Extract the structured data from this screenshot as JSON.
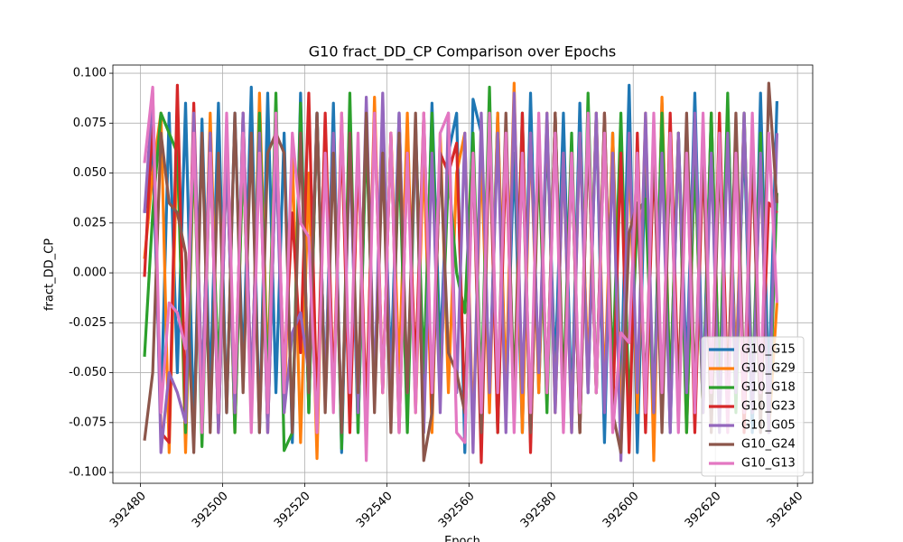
{
  "chart_data": {
    "type": "line",
    "title": "G10 fract_DD_CP Comparison over Epochs",
    "xlabel": "Epoch",
    "ylabel": "fract_DD_CP",
    "x": [
      392481,
      392483,
      392485,
      392487,
      392489,
      392491,
      392493,
      392495,
      392497,
      392499,
      392501,
      392503,
      392505,
      392507,
      392509,
      392511,
      392513,
      392515,
      392517,
      392519,
      392521,
      392523,
      392525,
      392527,
      392529,
      392531,
      392533,
      392535,
      392537,
      392539,
      392541,
      392543,
      392545,
      392547,
      392549,
      392551,
      392553,
      392555,
      392557,
      392559,
      392561,
      392563,
      392565,
      392567,
      392569,
      392571,
      392573,
      392575,
      392577,
      392579,
      392581,
      392583,
      392585,
      392587,
      392589,
      392591,
      392593,
      392595,
      392597,
      392599,
      392601,
      392603,
      392605,
      392607,
      392609,
      392611,
      392613,
      392615,
      392617,
      392619,
      392621,
      392623,
      392625,
      392627,
      392629,
      392631,
      392633,
      392635
    ],
    "xlim": [
      392473.3,
      392643.7
    ],
    "xticks": [
      392480,
      392500,
      392520,
      392540,
      392560,
      392580,
      392600,
      392620,
      392640
    ],
    "ylim": [
      -0.1054,
      0.1041
    ],
    "yticks": [
      {
        "value": 0.1,
        "label": "0.100"
      },
      0.075,
      {
        "value": 0.05,
        "label": "0.050"
      },
      0.025,
      {
        "value": 0,
        "label": "0.000"
      },
      -0.025,
      {
        "value": -0.05,
        "label": "-0.050"
      },
      -0.075,
      {
        "value": -0.1,
        "label": "-0.100"
      }
    ],
    "grid": true,
    "legend": "lower right",
    "series": [
      {
        "name": "G10_G15",
        "color": "#1f77b4",
        "values": [
          0.03,
          0.06,
          -0.07,
          0.08,
          -0.05,
          0.085,
          -0.08,
          0.077,
          -0.06,
          0.085,
          -0.07,
          0.08,
          -0.05,
          0.093,
          -0.08,
          0.09,
          -0.06,
          0.07,
          -0.085,
          0.09,
          -0.07,
          0.08,
          -0.06,
          0.085,
          -0.09,
          0.07,
          -0.08,
          0.075,
          -0.06,
          0.07,
          -0.05,
          0.08,
          -0.07,
          0.075,
          -0.06,
          0.085,
          -0.04,
          0.06,
          0.08,
          -0.09,
          0.087,
          0.07,
          -0.06,
          0.08,
          -0.07,
          0.06,
          -0.08,
          0.09,
          -0.06,
          0.07,
          -0.05,
          0.08,
          -0.07,
          0.085,
          -0.06,
          0.08,
          -0.085,
          0.07,
          -0.06,
          0.094,
          -0.09,
          0.06,
          -0.07,
          0.085,
          -0.08,
          0.07,
          -0.05,
          0.09,
          -0.06,
          0.08,
          -0.07,
          0.083,
          -0.05,
          0.07,
          -0.08,
          0.09,
          -0.06,
          0.086
        ]
      },
      {
        "name": "G10_G29",
        "color": "#ff7f0e",
        "values": [
          0.007,
          0.05,
          0.08,
          -0.09,
          0.07,
          -0.09,
          0.06,
          -0.07,
          0.08,
          -0.06,
          0.07,
          -0.08,
          0.06,
          -0.07,
          0.09,
          -0.05,
          0.08,
          -0.07,
          0.06,
          -0.085,
          0.05,
          -0.093,
          0.07,
          -0.06,
          0.08,
          -0.07,
          0.06,
          -0.08,
          0.088,
          -0.06,
          0.07,
          -0.05,
          0.08,
          -0.07,
          0.06,
          -0.08,
          0.07,
          -0.06,
          0.05,
          0.07,
          -0.08,
          0.06,
          -0.07,
          0.08,
          -0.06,
          0.095,
          -0.08,
          0.07,
          -0.06,
          0.08,
          -0.07,
          0.06,
          -0.08,
          0.07,
          -0.05,
          0.08,
          -0.06,
          0.07,
          -0.08,
          0.06,
          -0.07,
          0.08,
          -0.094,
          0.088,
          -0.06,
          0.07,
          -0.08,
          0.06,
          -0.07,
          0.08,
          -0.06,
          0.07,
          -0.05,
          0.08,
          -0.07,
          0.06,
          -0.08,
          -0.015
        ]
      },
      {
        "name": "G10_G18",
        "color": "#2ca02c",
        "values": [
          -0.042,
          0.03,
          0.08,
          0.07,
          0.06,
          -0.08,
          0.065,
          -0.087,
          0.06,
          -0.05,
          0.07,
          -0.08,
          0.06,
          -0.07,
          0.08,
          -0.06,
          0.09,
          -0.089,
          -0.08,
          0.085,
          -0.07,
          0.08,
          -0.06,
          0.07,
          -0.088,
          0.09,
          -0.08,
          0.07,
          -0.06,
          0.08,
          -0.07,
          0.06,
          -0.08,
          0.07,
          -0.05,
          0.08,
          -0.06,
          0.05,
          0.0,
          -0.02,
          0.07,
          -0.06,
          0.093,
          -0.08,
          0.07,
          -0.06,
          0.08,
          -0.085,
          0.06,
          -0.07,
          0.08,
          -0.06,
          0.07,
          -0.08,
          0.09,
          -0.06,
          0.07,
          -0.05,
          0.08,
          -0.07,
          0.03,
          0.037,
          -0.07,
          0.08,
          -0.06,
          0.07,
          -0.08,
          0.06,
          -0.07,
          0.08,
          -0.06,
          0.09,
          -0.07,
          0.08,
          -0.06,
          0.07,
          -0.08,
          0.04
        ]
      },
      {
        "name": "G10_G23",
        "color": "#d62728",
        "values": [
          -0.002,
          0.08,
          -0.08,
          -0.085,
          0.094,
          -0.07,
          0.085,
          -0.06,
          0.07,
          -0.08,
          0.06,
          -0.07,
          0.08,
          -0.06,
          0.07,
          -0.08,
          0.06,
          -0.05,
          0.03,
          -0.04,
          0.09,
          -0.07,
          0.08,
          -0.06,
          0.07,
          -0.08,
          0.06,
          -0.07,
          0.08,
          -0.06,
          0.07,
          -0.08,
          0.06,
          -0.05,
          0.08,
          -0.07,
          0.06,
          0.05,
          0.065,
          -0.07,
          0.06,
          -0.095,
          0.07,
          -0.08,
          0.06,
          -0.07,
          0.08,
          -0.09,
          0.07,
          -0.06,
          0.08,
          -0.07,
          0.06,
          -0.08,
          0.07,
          -0.06,
          0.08,
          -0.07,
          0.06,
          -0.09,
          0.07,
          -0.08,
          0.06,
          -0.07,
          0.08,
          -0.06,
          0.07,
          -0.08,
          0.06,
          -0.07,
          0.08,
          -0.06,
          0.07,
          -0.08,
          0.06,
          -0.07,
          0.035,
          0.03
        ]
      },
      {
        "name": "G10_G05",
        "color": "#9467bd",
        "values": [
          0.03,
          0.09,
          -0.09,
          -0.05,
          -0.06,
          -0.075,
          0.08,
          -0.06,
          0.07,
          -0.08,
          0.06,
          -0.07,
          0.08,
          -0.06,
          0.07,
          -0.08,
          0.06,
          -0.07,
          -0.03,
          -0.02,
          -0.05,
          0.08,
          -0.06,
          0.07,
          -0.08,
          0.06,
          -0.07,
          0.088,
          -0.06,
          0.09,
          -0.07,
          0.08,
          -0.06,
          0.07,
          -0.08,
          0.06,
          -0.07,
          0.08,
          -0.06,
          0.07,
          -0.09,
          0.08,
          -0.06,
          0.07,
          -0.08,
          0.09,
          -0.06,
          0.07,
          -0.05,
          0.08,
          -0.07,
          0.06,
          -0.08,
          0.07,
          -0.06,
          0.08,
          -0.07,
          0.06,
          -0.094,
          0.07,
          -0.06,
          0.08,
          -0.07,
          0.06,
          -0.08,
          0.07,
          -0.06,
          0.08,
          -0.07,
          0.06,
          -0.08,
          0.07,
          -0.06,
          0.08,
          -0.07,
          0.06,
          -0.08,
          0.07
        ]
      },
      {
        "name": "G10_G24",
        "color": "#8c564b",
        "values": [
          -0.084,
          -0.05,
          0.07,
          0.035,
          0.03,
          0.01,
          -0.09,
          0.07,
          -0.08,
          0.06,
          -0.07,
          0.08,
          -0.06,
          0.07,
          -0.08,
          0.06,
          0.07,
          0.06,
          -0.08,
          0.07,
          -0.06,
          0.08,
          -0.07,
          0.06,
          -0.08,
          0.07,
          -0.06,
          0.08,
          -0.07,
          0.06,
          -0.08,
          0.07,
          -0.06,
          0.08,
          -0.094,
          -0.07,
          0.06,
          -0.04,
          -0.05,
          -0.07,
          0.06,
          -0.08,
          0.07,
          -0.06,
          0.08,
          -0.07,
          0.06,
          -0.08,
          0.07,
          -0.06,
          0.08,
          -0.07,
          0.06,
          -0.08,
          0.07,
          -0.06,
          0.08,
          -0.07,
          -0.09,
          0.02,
          0.035,
          -0.06,
          0.07,
          -0.08,
          0.06,
          -0.07,
          0.08,
          -0.06,
          0.07,
          -0.08,
          0.06,
          -0.07,
          0.08,
          -0.06,
          0.07,
          -0.08,
          0.095,
          0.035
        ]
      },
      {
        "name": "G10_G13",
        "color": "#e377c2",
        "values": [
          0.055,
          0.093,
          -0.07,
          -0.015,
          -0.02,
          -0.038,
          0.07,
          -0.08,
          0.06,
          -0.07,
          0.08,
          -0.06,
          0.07,
          -0.08,
          0.06,
          -0.07,
          0.08,
          -0.06,
          0.07,
          0.025,
          0.018,
          -0.08,
          0.06,
          -0.07,
          0.08,
          -0.06,
          0.07,
          -0.094,
          0.08,
          -0.06,
          0.07,
          -0.08,
          0.06,
          -0.07,
          0.08,
          -0.06,
          0.07,
          0.08,
          -0.08,
          -0.085,
          0.06,
          -0.07,
          0.08,
          -0.06,
          0.07,
          -0.08,
          0.06,
          -0.07,
          0.08,
          -0.06,
          0.07,
          -0.08,
          0.06,
          -0.07,
          0.08,
          -0.06,
          0.07,
          -0.08,
          -0.03,
          -0.035,
          0.06,
          -0.07,
          0.08,
          -0.06,
          0.07,
          -0.08,
          0.06,
          -0.07,
          0.08,
          -0.06,
          0.07,
          -0.08,
          0.06,
          -0.07,
          0.08,
          -0.06,
          0.07,
          -0.015
        ]
      }
    ]
  }
}
